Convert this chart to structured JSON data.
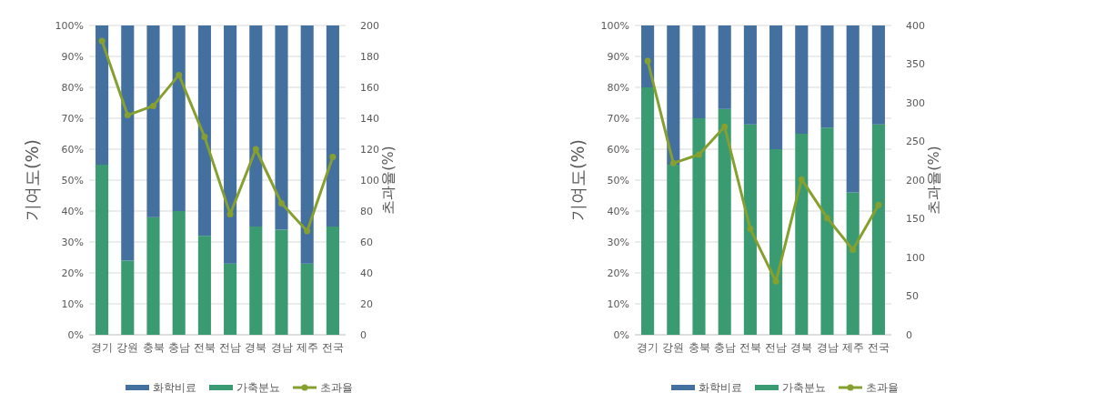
{
  "chart_data": [
    {
      "type": "bar",
      "stacked": true,
      "ylabel": "기여도(%)",
      "y2label": "초과율(%)",
      "categories": [
        "경기",
        "강원",
        "충북",
        "충남",
        "전북",
        "전남",
        "경북",
        "경남",
        "제주",
        "전국"
      ],
      "ylim": [
        0,
        100
      ],
      "yticks": [
        {
          "value": 0,
          "label": "0%"
        },
        {
          "value": 10,
          "label": "10%"
        },
        {
          "value": 20,
          "label": "20%"
        },
        {
          "value": 30,
          "label": "30%"
        },
        {
          "value": 40,
          "label": "40%"
        },
        {
          "value": 50,
          "label": "50%"
        },
        {
          "value": 60,
          "label": "60%"
        },
        {
          "value": 70,
          "label": "70%"
        },
        {
          "value": 80,
          "label": "80%"
        },
        {
          "value": 90,
          "label": "90%"
        },
        {
          "value": 100,
          "label": "100%"
        }
      ],
      "y2lim": [
        0,
        200
      ],
      "y2ticks": [
        0,
        20,
        40,
        60,
        80,
        100,
        120,
        140,
        160,
        180,
        200
      ],
      "grid": "y",
      "legend": "bottom",
      "marker": "circle",
      "series": [
        {
          "name": "가축분뇨",
          "color": "#3a9a72",
          "values": [
            55,
            24,
            38,
            40,
            32,
            23,
            35,
            34,
            23,
            35
          ]
        },
        {
          "name": "화학비료",
          "color": "#44709f",
          "values": [
            45,
            76,
            62,
            60,
            68,
            77,
            65,
            66,
            77,
            65
          ]
        },
        {
          "name": "초과율",
          "type": "line",
          "axis": "y2",
          "color": "#86a030",
          "values": [
            190,
            142,
            148,
            168,
            128,
            78,
            120,
            85,
            67,
            115
          ]
        }
      ]
    },
    {
      "type": "bar",
      "stacked": true,
      "ylabel": "기여도(%)",
      "y2label": "초과율(%)",
      "categories": [
        "경기",
        "강원",
        "충북",
        "충남",
        "전북",
        "전남",
        "경북",
        "경남",
        "제주",
        "전국"
      ],
      "ylim": [
        0,
        100
      ],
      "yticks": [
        {
          "value": 0,
          "label": "0%"
        },
        {
          "value": 10,
          "label": "10%"
        },
        {
          "value": 20,
          "label": "20%"
        },
        {
          "value": 30,
          "label": "30%"
        },
        {
          "value": 40,
          "label": "40%"
        },
        {
          "value": 50,
          "label": "50%"
        },
        {
          "value": 60,
          "label": "60%"
        },
        {
          "value": 70,
          "label": "70%"
        },
        {
          "value": 80,
          "label": "80%"
        },
        {
          "value": 90,
          "label": "90%"
        },
        {
          "value": 100,
          "label": "100%"
        }
      ],
      "y2lim": [
        0,
        400
      ],
      "y2ticks": [
        0,
        50,
        100,
        150,
        200,
        250,
        300,
        350,
        400
      ],
      "grid": "y",
      "legend": "bottom",
      "marker": "circle",
      "series": [
        {
          "name": "가축분뇨",
          "color": "#3a9a72",
          "values": [
            80,
            55,
            70,
            73,
            68,
            60,
            65,
            67,
            46,
            68
          ]
        },
        {
          "name": "화학비료",
          "color": "#44709f",
          "values": [
            20,
            45,
            30,
            27,
            32,
            40,
            35,
            33,
            54,
            32
          ]
        },
        {
          "name": "초과율",
          "type": "line",
          "axis": "y2",
          "color": "#86a030",
          "values": [
            354,
            222,
            233,
            269,
            137,
            69,
            201,
            151,
            110,
            168
          ]
        }
      ]
    }
  ]
}
